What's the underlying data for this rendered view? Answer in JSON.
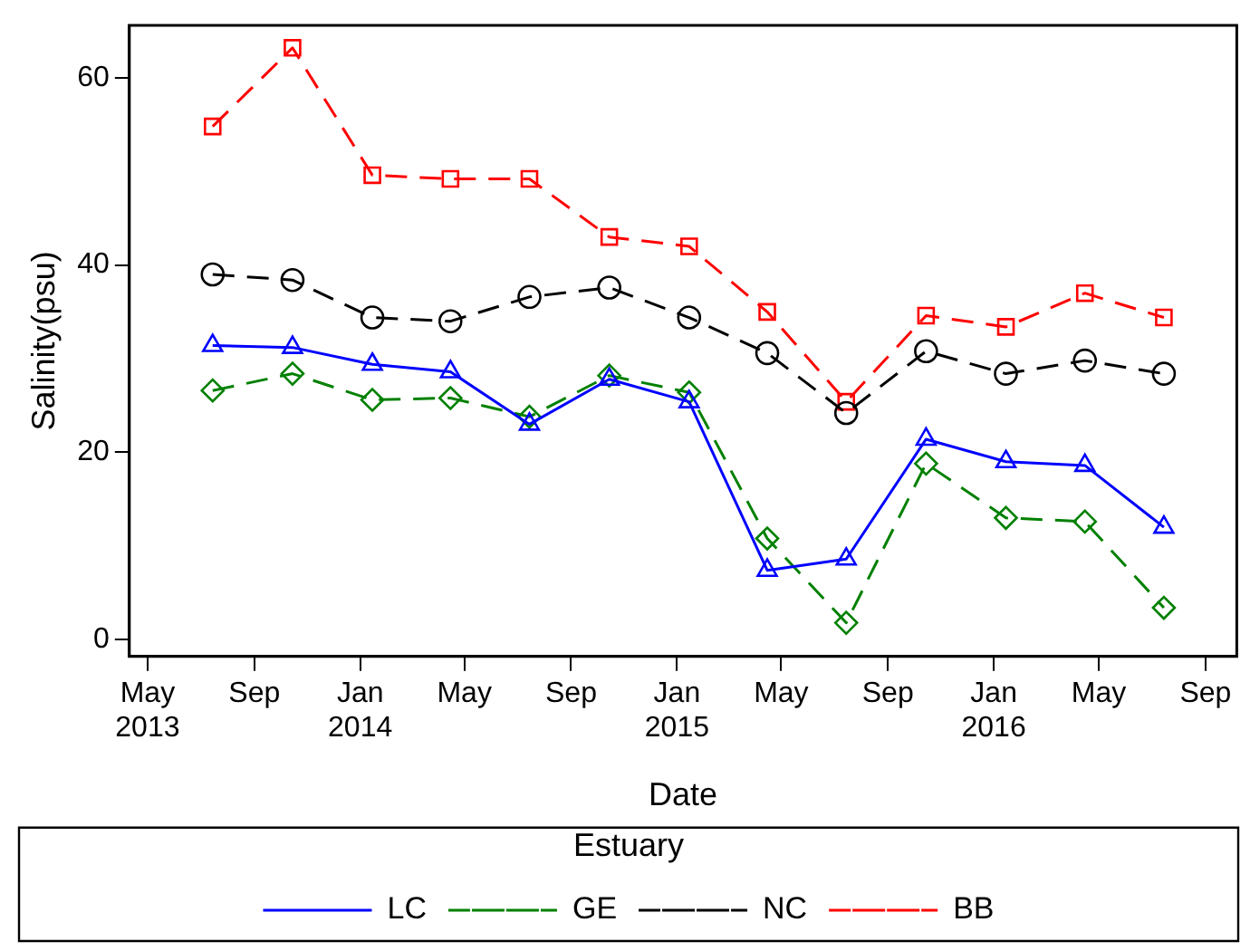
{
  "chart_data": {
    "type": "line",
    "xlabel": "Date",
    "ylabel": "Salinity(psu)",
    "legend_title": "Estuary",
    "legend": "bottom",
    "grid": false,
    "x": [
      "2013-07-15",
      "2013-10-15",
      "2014-01-15",
      "2014-04-15",
      "2014-07-15",
      "2014-10-15",
      "2015-01-15",
      "2015-04-15",
      "2015-07-15",
      "2015-10-15",
      "2016-01-15",
      "2016-04-15",
      "2016-07-15"
    ],
    "xlim": [
      "2013-04-10",
      "2016-10-07"
    ],
    "xticks": [
      {
        "value": "2013-05-01",
        "label": "May\n2013"
      },
      {
        "value": "2013-09-01",
        "label": "Sep"
      },
      {
        "value": "2014-01-01",
        "label": "Jan\n2014"
      },
      {
        "value": "2014-05-01",
        "label": "May"
      },
      {
        "value": "2014-09-01",
        "label": "Sep"
      },
      {
        "value": "2015-01-01",
        "label": "Jan\n2015"
      },
      {
        "value": "2015-05-01",
        "label": "May"
      },
      {
        "value": "2015-09-01",
        "label": "Sep"
      },
      {
        "value": "2016-01-01",
        "label": "Jan\n2016"
      },
      {
        "value": "2016-05-01",
        "label": "May"
      },
      {
        "value": "2016-09-01",
        "label": "Sep"
      }
    ],
    "ylim": [
      -1.8,
      65.6
    ],
    "yticks": [
      0,
      20,
      40,
      60
    ],
    "series": [
      {
        "name": "LC",
        "color": "#0000ff",
        "marker": "triangle",
        "line_style": "solid",
        "values": [
          31.4,
          31.2,
          29.4,
          28.6,
          23,
          27.8,
          25.4,
          7.4,
          8.6,
          21.4,
          19,
          18.6,
          12
        ]
      },
      {
        "name": "GE",
        "color": "#008000",
        "marker": "diamond",
        "line_style": "dashed",
        "values": [
          26.6,
          28.4,
          25.6,
          25.8,
          23.8,
          28.2,
          26.4,
          10.8,
          1.8,
          18.8,
          13,
          12.6,
          3.4
        ]
      },
      {
        "name": "NC",
        "color": "#000000",
        "marker": "circle",
        "line_style": "dashed",
        "values": [
          39,
          38.4,
          34.4,
          34,
          36.6,
          37.6,
          34.4,
          30.6,
          24.2,
          30.8,
          28.4,
          29.8,
          28.4
        ]
      },
      {
        "name": "BB",
        "color": "#ff0000",
        "marker": "square",
        "line_style": "dashed",
        "values": [
          54.8,
          63.2,
          49.6,
          49.2,
          49.2,
          43,
          42,
          35,
          25.4,
          34.6,
          33.4,
          37,
          34.4
        ]
      }
    ]
  }
}
